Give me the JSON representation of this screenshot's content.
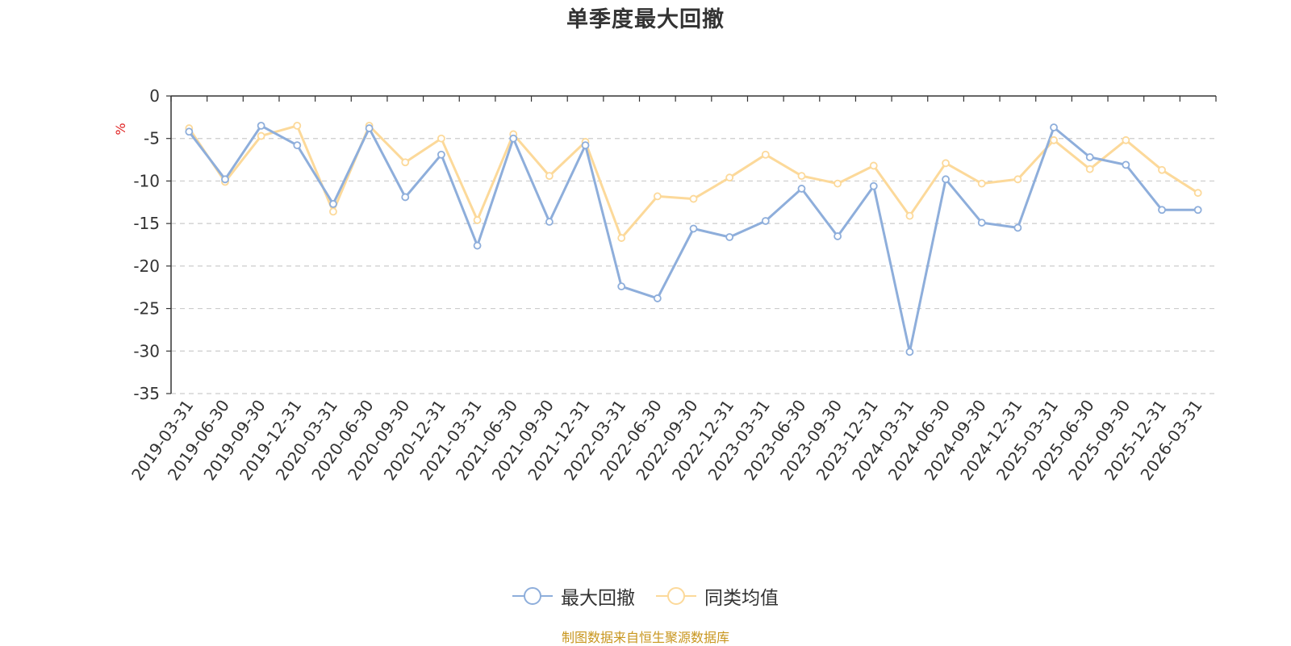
{
  "chart_data": {
    "type": "line",
    "title": "单季度最大回撤",
    "ylabel": "%",
    "ylim": [
      -35,
      0
    ],
    "yticks": [
      0,
      -5,
      -10,
      -15,
      -20,
      -25,
      -30,
      -35
    ],
    "grid": true,
    "legend_position": "bottom-center",
    "categories": [
      "2019-03-31",
      "2019-06-30",
      "2019-09-30",
      "2019-12-31",
      "2020-03-31",
      "2020-06-30",
      "2020-09-30",
      "2020-12-31",
      "2021-03-31",
      "2021-06-30",
      "2021-09-30",
      "2021-12-31",
      "2022-03-31",
      "2022-06-30",
      "2022-09-30",
      "2022-12-31",
      "2023-03-31",
      "2023-06-30",
      "2023-09-30",
      "2023-12-31",
      "2024-03-31",
      "2024-06-30",
      "2024-09-30",
      "2024-12-31",
      "2025-03-31",
      "2025-06-30",
      "2025-09-30",
      "2025-12-31",
      "2026-03-31"
    ],
    "series": [
      {
        "name": "最大回撤",
        "color": "#8eaedb",
        "values": [
          -4.2,
          -9.8,
          -3.5,
          -5.8,
          -12.7,
          -3.8,
          -11.9,
          -6.9,
          -17.6,
          -5.0,
          -14.8,
          -5.8,
          -22.4,
          -23.8,
          -15.6,
          -16.6,
          -14.7,
          -10.9,
          -16.5,
          -10.6,
          -30.1,
          -9.8,
          -14.9,
          -15.5,
          -3.7,
          -7.2,
          -8.1,
          -13.4,
          -13.4
        ]
      },
      {
        "name": "同类均值",
        "color": "#fcd99a",
        "values": [
          -3.8,
          -10.1,
          -4.7,
          -3.5,
          -13.6,
          -3.5,
          -7.8,
          -5.0,
          -14.6,
          -4.5,
          -9.4,
          -5.4,
          -16.7,
          -11.8,
          -12.1,
          -9.6,
          -6.9,
          -9.4,
          -10.3,
          -8.2,
          -14.1,
          -7.9,
          -10.3,
          -9.8,
          -5.2,
          -8.6,
          -5.2,
          -8.7,
          -11.4
        ]
      }
    ]
  },
  "legend": {
    "items": [
      {
        "label": "最大回撤",
        "color": "#8eaedb"
      },
      {
        "label": "同类均值",
        "color": "#fcd99a"
      }
    ]
  },
  "footer": {
    "source": "制图数据来自恒生聚源数据库",
    "color": "#c8961e"
  },
  "style": {
    "ylabel_color": "#e02020",
    "axis_color": "#333333",
    "grid_color": "#cccccc",
    "tick_label_color": "#333333"
  }
}
